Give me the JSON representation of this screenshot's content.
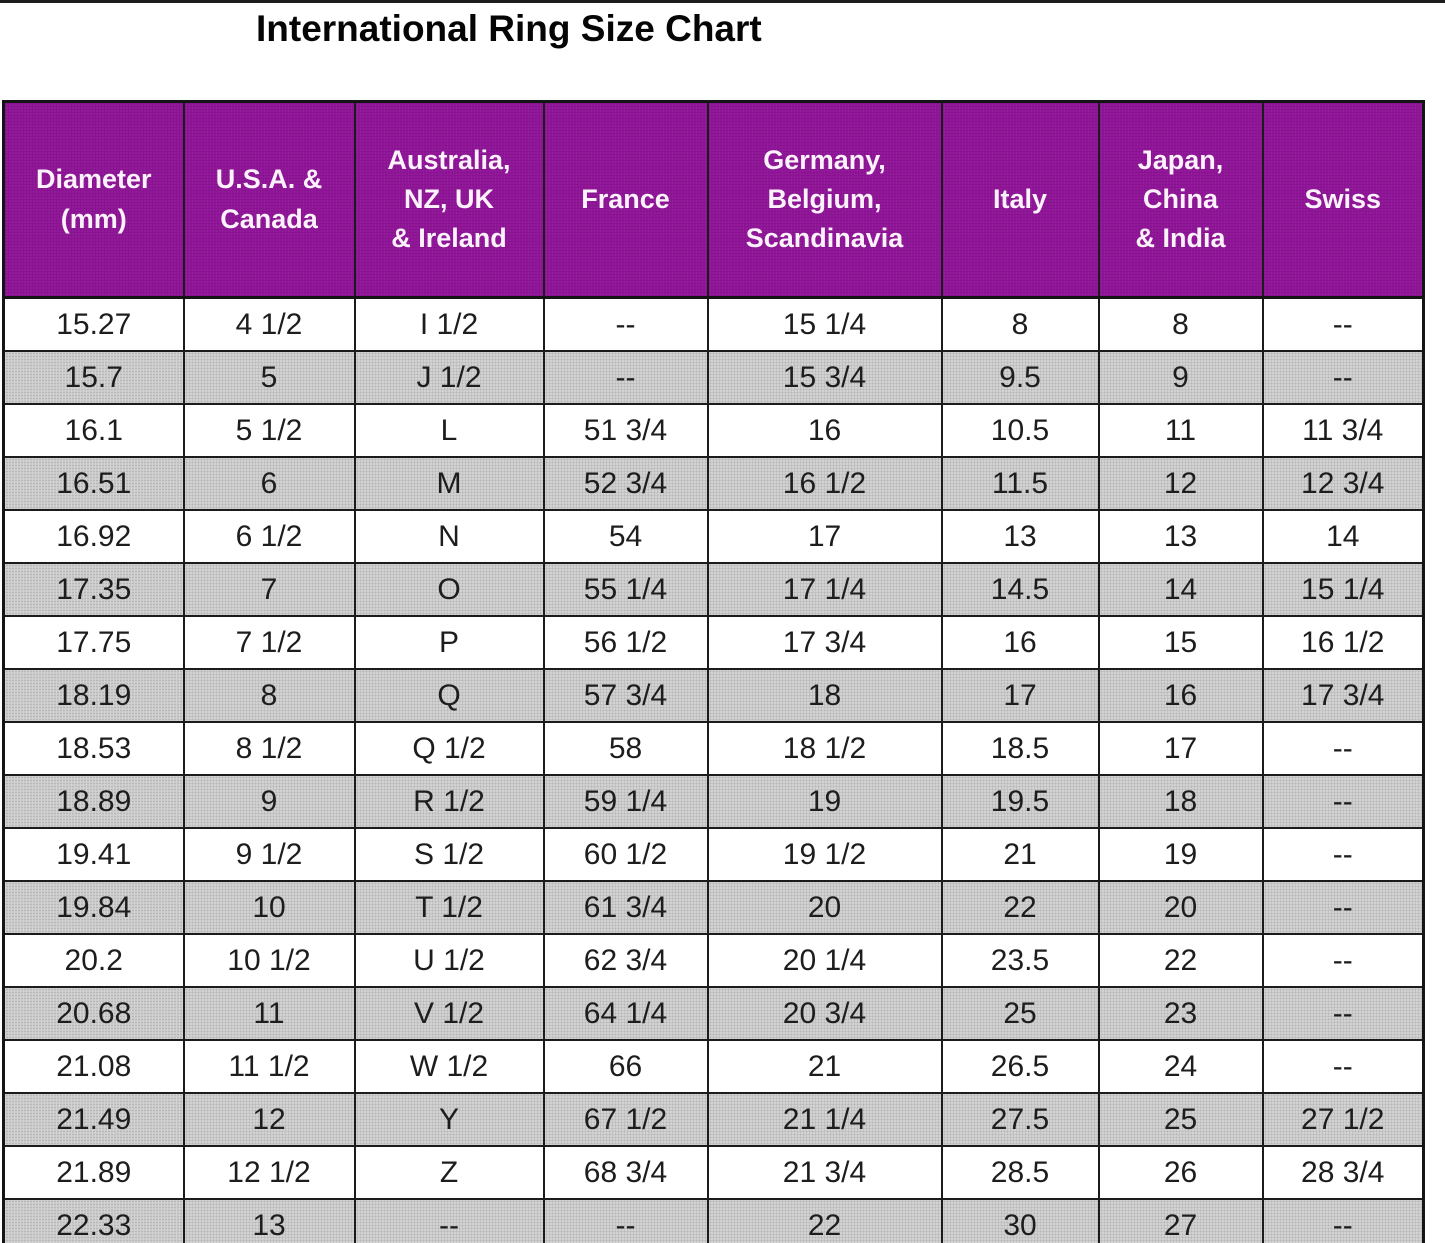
{
  "title": "International Ring Size Chart",
  "colors": {
    "header_background": "#8c1294",
    "header_text": "#fcf2fc",
    "alt_row_background": "#d2d2d2",
    "row_background": "#ffffff",
    "border": "#1b1b1b",
    "title_text": "#050505"
  },
  "chart_data": {
    "type": "table",
    "title": "International Ring Size Chart",
    "columns": [
      "Diameter\n(mm)",
      "U.S.A. &\nCanada",
      "Australia,\nNZ, UK\n& Ireland",
      "France",
      "Germany,\nBelgium,\nScandinavia",
      "Italy",
      "Japan,\nChina\n& India",
      "Swiss"
    ],
    "rows": [
      [
        "15.27",
        "4 1/2",
        "I 1/2",
        "--",
        "15 1/4",
        "8",
        "8",
        "--"
      ],
      [
        "15.7",
        "5",
        "J 1/2",
        "--",
        "15 3/4",
        "9.5",
        "9",
        "--"
      ],
      [
        "16.1",
        "5 1/2",
        "L",
        "51 3/4",
        "16",
        "10.5",
        "11",
        "11 3/4"
      ],
      [
        "16.51",
        "6",
        "M",
        "52 3/4",
        "16 1/2",
        "11.5",
        "12",
        "12 3/4"
      ],
      [
        "16.92",
        "6 1/2",
        "N",
        "54",
        "17",
        "13",
        "13",
        "14"
      ],
      [
        "17.35",
        "7",
        "O",
        "55 1/4",
        "17 1/4",
        "14.5",
        "14",
        "15 1/4"
      ],
      [
        "17.75",
        "7 1/2",
        "P",
        "56 1/2",
        "17 3/4",
        "16",
        "15",
        "16 1/2"
      ],
      [
        "18.19",
        "8",
        "Q",
        "57 3/4",
        "18",
        "17",
        "16",
        "17 3/4"
      ],
      [
        "18.53",
        "8 1/2",
        "Q 1/2",
        "58",
        "18 1/2",
        "18.5",
        "17",
        "--"
      ],
      [
        "18.89",
        "9",
        "R 1/2",
        "59 1/4",
        "19",
        "19.5",
        "18",
        "--"
      ],
      [
        "19.41",
        "9 1/2",
        "S 1/2",
        "60 1/2",
        "19 1/2",
        "21",
        "19",
        "--"
      ],
      [
        "19.84",
        "10",
        "T 1/2",
        "61 3/4",
        "20",
        "22",
        "20",
        "--"
      ],
      [
        "20.2",
        "10 1/2",
        "U 1/2",
        "62 3/4",
        "20 1/4",
        "23.5",
        "22",
        "--"
      ],
      [
        "20.68",
        "11",
        "V 1/2",
        "64 1/4",
        "20 3/4",
        "25",
        "23",
        "--"
      ],
      [
        "21.08",
        "11 1/2",
        "W 1/2",
        "66",
        "21",
        "26.5",
        "24",
        "--"
      ],
      [
        "21.49",
        "12",
        "Y",
        "67 1/2",
        "21 1/4",
        "27.5",
        "25",
        "27 1/2"
      ],
      [
        "21.89",
        "12 1/2",
        "Z",
        "68 3/4",
        "21 3/4",
        "28.5",
        "26",
        "28 3/4"
      ],
      [
        "22.33",
        "13",
        "--",
        "--",
        "22",
        "30",
        "27",
        "--"
      ]
    ]
  }
}
